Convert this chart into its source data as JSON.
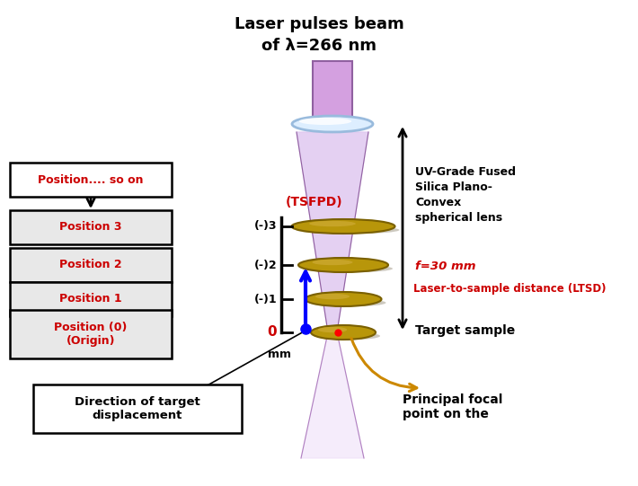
{
  "title_line1": "Laser pulses beam",
  "title_line2": "of λ=266 nm",
  "bg_color": "#ffffff",
  "lens_color": "#d4a0e0",
  "lens_dark": "#9060a0",
  "disk_color": "#b8960a",
  "disk_edge": "#7a6000",
  "beam_color": "#ddb8f0",
  "red_color": "#cc0000",
  "gold_color": "#cc9900",
  "box_label_so_on": "Position.... so on",
  "box_label_3": "Position 3",
  "box_label_2": "Position 2",
  "box_label_1": "Position 1",
  "box_label_0": "Position (0)\n(Origin)",
  "tsfpd_label": "(TSFPD)",
  "scale_labels": [
    "(-)3",
    "(-)2",
    "(-)1",
    "0"
  ],
  "mm_label": "mm",
  "direction_label": "Direction of target\ndisplacement",
  "uv_lens_label": "UV-Grade Fused\nSilica Plano-\nConvex\nspherical lens",
  "focal_length_label": "f=30 mm",
  "ltsd_label": "Laser-to-sample distance (LTSD)",
  "target_sample_label": "Target sample",
  "focal_point_label": "Principal focal\npoint on the"
}
